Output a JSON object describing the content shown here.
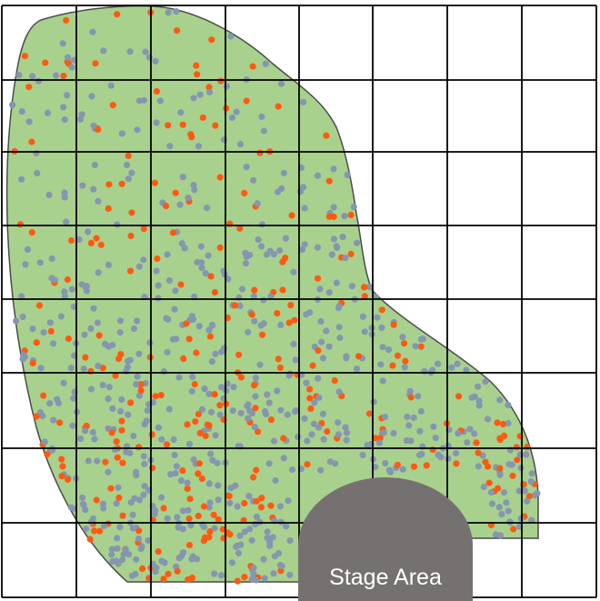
{
  "stage": {
    "label": "Stage Area"
  },
  "colors": {
    "background": "#ffffff",
    "crowd_area": "#a9d18e",
    "crowd_outline": "#4a4a4a",
    "grid_line": "#000000",
    "stage_fill": "#767171",
    "stage_text": "#ffffff",
    "dot_grey": "#8496b0",
    "dot_orange": "#fe5a10"
  },
  "icons": {
    "person_dot": "circle"
  }
}
